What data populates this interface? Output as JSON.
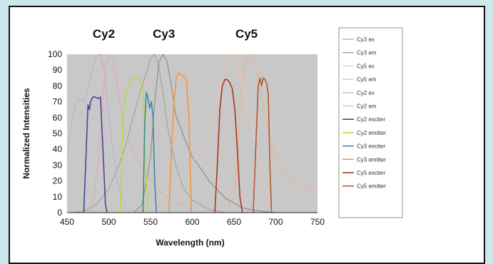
{
  "chart_data": {
    "type": "line",
    "xlabel": "Wavelength (nm)",
    "ylabel": "Normalized Intensities",
    "xlim": [
      450,
      750
    ],
    "ylim": [
      0,
      100
    ],
    "x_ticks": [
      450,
      500,
      550,
      600,
      650,
      700,
      750
    ],
    "y_ticks": [
      0,
      10,
      20,
      30,
      40,
      50,
      60,
      70,
      80,
      90,
      100
    ],
    "grid": false,
    "legend_position": "right",
    "plot_background": "#c8c8c8",
    "annotations": [
      {
        "text": "Cy2",
        "x": 494
      },
      {
        "text": "Cy3",
        "x": 566
      },
      {
        "text": "Cy5",
        "x": 665
      }
    ],
    "series": [
      {
        "name": "Cy3 ex",
        "color": "#a0a0a0",
        "x": [
          455,
          470,
          485,
          500,
          510,
          520,
          530,
          540,
          550,
          555,
          560,
          565,
          570,
          580,
          590,
          600,
          620,
          640,
          660,
          680,
          700
        ],
        "y": [
          0,
          1,
          5,
          15,
          27,
          42,
          62,
          80,
          97,
          100,
          92,
          75,
          55,
          30,
          15,
          8,
          2,
          0,
          0,
          0,
          0
        ]
      },
      {
        "name": "Cy3 em",
        "color": "#8a8a8a",
        "x": [
          530,
          540,
          550,
          555,
          560,
          565,
          570,
          575,
          580,
          590,
          600,
          610,
          620,
          640,
          660,
          680,
          700
        ],
        "y": [
          0,
          5,
          35,
          70,
          95,
          100,
          95,
          80,
          62,
          48,
          35,
          28,
          20,
          9,
          3,
          1,
          0
        ]
      },
      {
        "name": "Cy5 ex",
        "color": "#f4c4a8",
        "x": [
          540,
          560,
          580,
          600,
          610,
          620,
          630,
          640,
          645,
          650,
          655,
          660,
          665,
          670,
          680,
          690,
          700
        ],
        "y": [
          3,
          8,
          18,
          32,
          40,
          50,
          72,
          94,
          100,
          98,
          90,
          80,
          70,
          60,
          32,
          10,
          2
        ]
      },
      {
        "name": "Cy5 em",
        "color": "#f0b090",
        "x": [
          640,
          650,
          655,
          660,
          665,
          670,
          675,
          680,
          690,
          700,
          710,
          720,
          730,
          740,
          750
        ],
        "y": [
          0,
          10,
          45,
          85,
          98,
          100,
          94,
          82,
          55,
          34,
          25,
          20,
          17,
          15,
          13
        ]
      },
      {
        "name": "Cy2 ex",
        "color": "#c6a6d6",
        "x": [
          450,
          455,
          460,
          465,
          470,
          475,
          480,
          485,
          490,
          495,
          500,
          510,
          520
        ],
        "y": [
          35,
          55,
          68,
          72,
          70,
          78,
          90,
          98,
          100,
          90,
          60,
          20,
          3
        ]
      },
      {
        "name": "Cy2 em",
        "color": "#e8a6b4",
        "x": [
          480,
          490,
          495,
          500,
          505,
          510,
          515,
          520,
          530,
          540,
          550,
          560,
          570,
          580,
          600
        ],
        "y": [
          0,
          45,
          88,
          100,
          96,
          82,
          62,
          50,
          38,
          28,
          20,
          14,
          10,
          6,
          2
        ]
      },
      {
        "name": "Cy2 exciter",
        "color": "#4a4498",
        "x": [
          470,
          473,
          475,
          477,
          478,
          481,
          484,
          487,
          490,
          493,
          496,
          498
        ],
        "y": [
          0,
          40,
          68,
          65,
          70,
          73,
          73,
          72,
          73,
          40,
          5,
          0
        ]
      },
      {
        "name": "Cy2 emitter",
        "color": "#b8dc3a",
        "x": [
          514,
          517,
          520,
          523,
          526,
          530,
          534,
          538,
          541,
          544,
          547
        ],
        "y": [
          0,
          60,
          75,
          80,
          84,
          86,
          85,
          82,
          80,
          30,
          0
        ]
      },
      {
        "name": "Cy3 exciter",
        "color": "#3a8c9c",
        "x": [
          541,
          543,
          545,
          547,
          549,
          551,
          553,
          555,
          557
        ],
        "y": [
          0,
          55,
          76,
          72,
          66,
          70,
          60,
          20,
          0
        ]
      },
      {
        "name": "Cy3 emitter",
        "color": "#f4963a",
        "x": [
          572,
          575,
          578,
          581,
          584,
          587,
          590,
          593,
          596,
          599
        ],
        "y": [
          0,
          40,
          70,
          86,
          88,
          87,
          86,
          84,
          60,
          0
        ]
      },
      {
        "name": "Cy5 exciter",
        "color": "#b03424",
        "x": [
          627,
          630,
          633,
          636,
          639,
          642,
          645,
          648,
          651,
          654,
          657,
          660
        ],
        "y": [
          0,
          30,
          65,
          80,
          84,
          84,
          82,
          78,
          65,
          40,
          10,
          0
        ]
      },
      {
        "name": "Cy5 emitter",
        "color": "#b45a30",
        "x": [
          673,
          676,
          679,
          681,
          683,
          685,
          687,
          689,
          691,
          693,
          695
        ],
        "y": [
          0,
          40,
          80,
          85,
          80,
          85,
          84,
          82,
          75,
          30,
          0
        ]
      }
    ]
  }
}
